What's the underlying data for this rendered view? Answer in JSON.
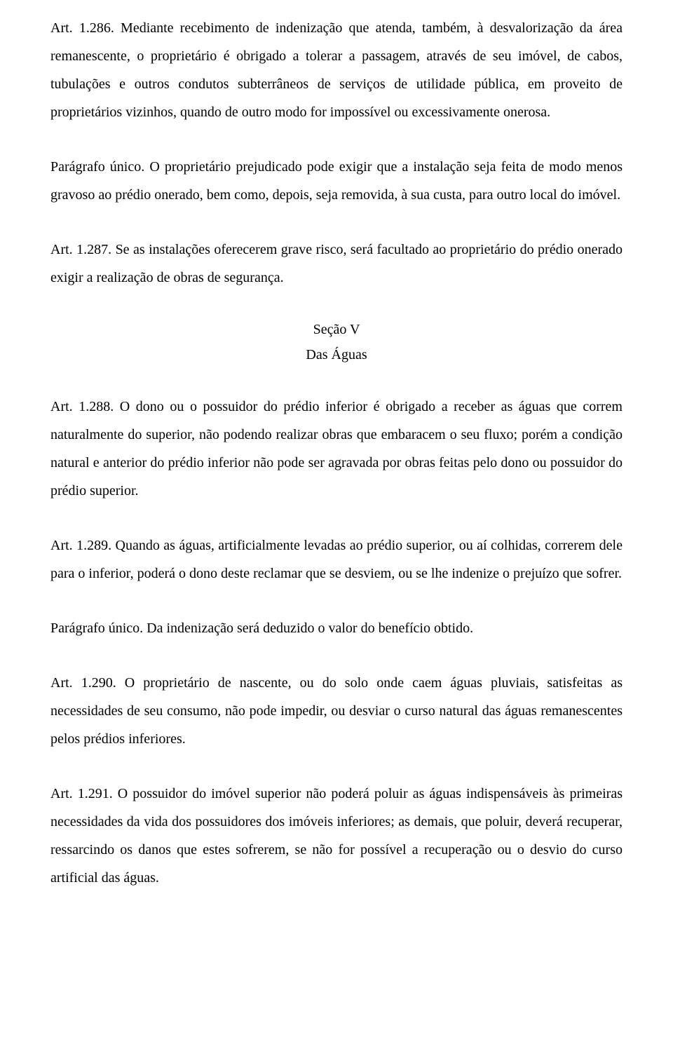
{
  "paragraphs": {
    "p1": "Art. 1.286. Mediante recebimento de indenização que atenda, também, à desvalorização da área remanescente, o proprietário é obrigado a tolerar a passagem, através de seu imóvel, de cabos, tubulações e outros condutos subterrâneos de serviços de utilidade pública, em proveito de proprietários vizinhos, quando de outro modo for impossível ou excessivamente onerosa.",
    "p2": "Parágrafo único. O proprietário prejudicado pode exigir que a instalação seja feita de modo menos gravoso ao prédio onerado, bem como, depois, seja removida, à sua custa, para outro local do imóvel.",
    "p3": "Art. 1.287. Se as instalações oferecerem grave risco, será facultado ao proprietário do prédio onerado exigir a realização de obras de segurança.",
    "section_label": "Seção V",
    "section_title": "Das Águas",
    "p4": "Art. 1.288. O dono ou o possuidor do prédio inferior é obrigado a receber as águas que correm naturalmente do superior, não podendo realizar obras que embaracem o seu fluxo; porém a condição natural e anterior do prédio inferior não pode ser agravada por obras feitas pelo dono ou possuidor do prédio superior.",
    "p5": "Art. 1.289. Quando as águas, artificialmente levadas ao prédio superior, ou aí colhidas, correrem dele para o inferior, poderá o dono deste reclamar que se desviem, ou se lhe indenize o prejuízo que sofrer.",
    "p6": "Parágrafo único. Da indenização será deduzido o valor do benefício obtido.",
    "p7": "Art. 1.290. O proprietário de nascente, ou do solo onde caem águas pluviais, satisfeitas as necessidades de seu consumo, não pode impedir, ou desviar o curso natural das águas remanescentes pelos prédios inferiores.",
    "p8": "Art. 1.291. O possuidor do imóvel superior não poderá poluir as águas indispensáveis às primeiras necessidades da vida dos possuidores dos imóveis inferiores; as demais, que poluir, deverá recuperar, ressarcindo os danos que estes sofrerem, se não for possível a recuperação ou o desvio do curso artificial das águas."
  }
}
